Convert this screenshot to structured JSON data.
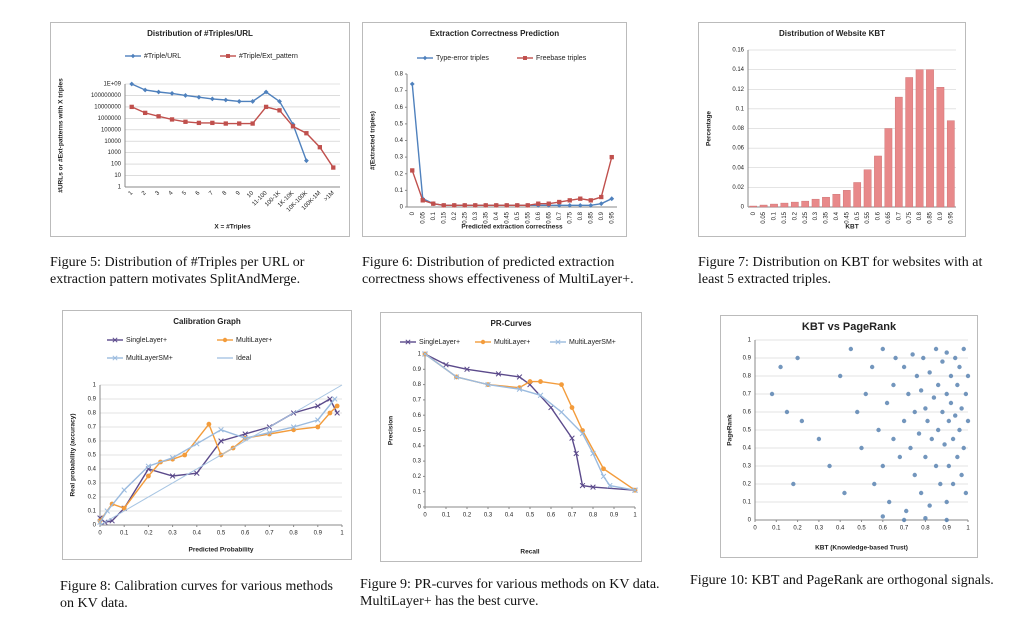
{
  "chart_data": [
    {
      "type": "line",
      "title": "Distribution of #Triples/URL",
      "x_label": "X = #Triples",
      "y_label": "#URLs or #Ext-patterns with X triples",
      "categories": [
        "1",
        "2",
        "3",
        "4",
        "5",
        "6",
        "7",
        "8",
        "9",
        "10",
        "11-100",
        "100-1K",
        "1K-10K",
        "10K-100K",
        "100K-1M",
        ">1M"
      ],
      "series": [
        {
          "name": "#Triple/URL",
          "color": "#4f81bd",
          "marker": "diamond",
          "values": [
            1000000000,
            300000000,
            200000000,
            150000000,
            100000000,
            70000000,
            50000000,
            40000000,
            30000000,
            30000000,
            200000000,
            30000000,
            300000,
            200,
            null,
            null
          ]
        },
        {
          "name": "#Triple/Ext_pattern",
          "color": "#c0504d",
          "marker": "square",
          "values": [
            10000000,
            3000000,
            1500000,
            800000,
            500000,
            400000,
            400000,
            350000,
            350000,
            350000,
            10000000,
            5000000,
            200000,
            50000,
            3000,
            50
          ]
        }
      ],
      "ylim": [
        1,
        1000000000
      ],
      "ylog": true,
      "yticks": [
        1,
        10,
        100,
        1000,
        10000,
        100000,
        1000000,
        10000000,
        100000000,
        {
          "value": 1000000000,
          "label": "1E+09"
        }
      ],
      "grid": true,
      "legend": "top"
    },
    {
      "type": "line",
      "title": "Extraction Correctness Prediction",
      "x_label": "Predicted extraction correctness",
      "y_label": "#(Extracted triples)",
      "categories": [
        "0",
        "0.05",
        "0.1",
        "0.15",
        "0.2",
        "0.25",
        "0.3",
        "0.35",
        "0.4",
        "0.45",
        "0.5",
        "0.55",
        "0.6",
        "0.65",
        "0.7",
        "0.75",
        "0.8",
        "0.85",
        "0.9",
        "0.95"
      ],
      "series": [
        {
          "name": "Type-error triples",
          "color": "#4f81bd",
          "marker": "diamond",
          "values": [
            0.74,
            0.05,
            0.02,
            0.01,
            0.01,
            0.01,
            0.01,
            0.01,
            0.01,
            0.01,
            0.01,
            0.01,
            0.01,
            0.01,
            0.01,
            0.01,
            0.01,
            0.01,
            0.02,
            0.05
          ]
        },
        {
          "name": "Freebase triples",
          "color": "#c0504d",
          "marker": "square",
          "values": [
            0.22,
            0.04,
            0.02,
            0.01,
            0.01,
            0.01,
            0.01,
            0.01,
            0.01,
            0.01,
            0.01,
            0.01,
            0.02,
            0.02,
            0.03,
            0.04,
            0.05,
            0.04,
            0.06,
            0.3
          ]
        }
      ],
      "ylim": [
        0,
        0.8
      ],
      "yticks": [
        0,
        0.1,
        0.2,
        0.3,
        0.4,
        0.5,
        0.6,
        0.7,
        0.8
      ],
      "grid": false,
      "legend": "top"
    },
    {
      "type": "bar",
      "title": "Distribution of Website KBT",
      "x_label": "KBT",
      "y_label": "Percentage",
      "categories": [
        "0",
        "0.05",
        "0.1",
        "0.15",
        "0.2",
        "0.25",
        "0.3",
        "0.35",
        "0.4",
        "0.45",
        "0.5",
        "0.55",
        "0.6",
        "0.65",
        "0.7",
        "0.75",
        "0.8",
        "0.85",
        "0.9",
        "0.95"
      ],
      "values": [
        0.001,
        0.002,
        0.003,
        0.004,
        0.005,
        0.006,
        0.008,
        0.01,
        0.013,
        0.017,
        0.025,
        0.038,
        0.052,
        0.08,
        0.112,
        0.132,
        0.14,
        0.14,
        0.122,
        0.088
      ],
      "color": "#e8898a",
      "ylim": [
        0,
        0.16
      ],
      "yticks": [
        0,
        0.02,
        0.04,
        0.06,
        0.08,
        0.1,
        0.12,
        0.14,
        0.16
      ],
      "grid": true
    },
    {
      "type": "line",
      "title": "Calibration Graph",
      "x_label": "Predicted Probability",
      "y_label": "Real probability (accuracy)",
      "series": [
        {
          "name": "SingleLayer+",
          "color": "#5b4a8b",
          "marker": "x",
          "x": [
            0,
            0.02,
            0.05,
            0.1,
            0.2,
            0.3,
            0.4,
            0.5,
            0.6,
            0.7,
            0.8,
            0.9,
            0.95,
            0.98
          ],
          "values": [
            0.05,
            0.02,
            0.03,
            0.12,
            0.4,
            0.35,
            0.37,
            0.6,
            0.65,
            0.7,
            0.8,
            0.85,
            0.9,
            0.8
          ]
        },
        {
          "name": "MultiLayer+",
          "color": "#f39c3c",
          "marker": "circle",
          "x": [
            0,
            0.05,
            0.1,
            0.2,
            0.25,
            0.3,
            0.35,
            0.45,
            0.5,
            0.55,
            0.6,
            0.7,
            0.8,
            0.9,
            0.95,
            0.98
          ],
          "values": [
            0.03,
            0.15,
            0.12,
            0.35,
            0.45,
            0.47,
            0.5,
            0.72,
            0.5,
            0.55,
            0.62,
            0.65,
            0.68,
            0.7,
            0.8,
            0.85
          ]
        },
        {
          "name": "MultiLayerSM+",
          "color": "#9bbbdf",
          "marker": "x",
          "x": [
            0,
            0.03,
            0.1,
            0.2,
            0.3,
            0.4,
            0.5,
            0.6,
            0.7,
            0.8,
            0.9,
            0.97
          ],
          "values": [
            0.02,
            0.1,
            0.25,
            0.42,
            0.48,
            0.58,
            0.68,
            0.62,
            0.66,
            0.7,
            0.75,
            0.9
          ]
        },
        {
          "name": "Ideal",
          "color": "#a7c5e3",
          "marker": "none",
          "x": [
            0,
            1
          ],
          "values": [
            0,
            1
          ]
        }
      ],
      "xlim": [
        0,
        1
      ],
      "xticks": [
        0,
        0.1,
        0.2,
        0.3,
        0.4,
        0.5,
        0.6,
        0.7,
        0.8,
        0.9,
        1
      ],
      "ylim": [
        0,
        1
      ],
      "yticks": [
        0,
        0.1,
        0.2,
        0.3,
        0.4,
        0.5,
        0.6,
        0.7,
        0.8,
        0.9,
        1
      ],
      "grid": true,
      "legend": "top"
    },
    {
      "type": "line",
      "title": "PR-Curves",
      "x_label": "Recall",
      "y_label": "Precision",
      "series": [
        {
          "name": "SingleLayer+",
          "color": "#5b4a8b",
          "marker": "x",
          "x": [
            0,
            0.1,
            0.2,
            0.35,
            0.45,
            0.5,
            0.6,
            0.7,
            0.72,
            0.75,
            0.8,
            1
          ],
          "values": [
            1,
            0.93,
            0.9,
            0.87,
            0.85,
            0.8,
            0.65,
            0.45,
            0.35,
            0.14,
            0.13,
            0.11
          ]
        },
        {
          "name": "MultiLayer+",
          "color": "#f39c3c",
          "marker": "circle",
          "x": [
            0,
            0.15,
            0.3,
            0.45,
            0.5,
            0.55,
            0.65,
            0.7,
            0.75,
            0.85,
            1
          ],
          "values": [
            1,
            0.85,
            0.8,
            0.78,
            0.82,
            0.82,
            0.8,
            0.65,
            0.5,
            0.25,
            0.11
          ]
        },
        {
          "name": "MultiLayerSM+",
          "color": "#9bbbdf",
          "marker": "x",
          "x": [
            0,
            0.15,
            0.3,
            0.45,
            0.55,
            0.65,
            0.75,
            0.8,
            0.85,
            0.88,
            1
          ],
          "values": [
            1,
            0.85,
            0.8,
            0.77,
            0.73,
            0.62,
            0.48,
            0.35,
            0.2,
            0.14,
            0.11
          ]
        }
      ],
      "xlim": [
        0,
        1
      ],
      "xticks": [
        0,
        0.1,
        0.2,
        0.3,
        0.4,
        0.5,
        0.6,
        0.7,
        0.8,
        0.9,
        1
      ],
      "ylim": [
        0,
        1
      ],
      "yticks": [
        0,
        0.1,
        0.2,
        0.3,
        0.4,
        0.5,
        0.6,
        0.7,
        0.8,
        0.9,
        1
      ],
      "grid": false,
      "legend": "top"
    },
    {
      "type": "scatter",
      "title": "KBT vs PageRank",
      "x_label": "KBT (Knowledge-based Trust)",
      "y_label": "PageRank",
      "color": "#5b84b1",
      "x": [
        0.08,
        0.12,
        0.15,
        0.18,
        0.2,
        0.22,
        0.3,
        0.35,
        0.4,
        0.42,
        0.45,
        0.48,
        0.5,
        0.52,
        0.55,
        0.56,
        0.58,
        0.6,
        0.6,
        0.62,
        0.63,
        0.65,
        0.65,
        0.66,
        0.68,
        0.7,
        0.7,
        0.71,
        0.72,
        0.73,
        0.74,
        0.75,
        0.75,
        0.76,
        0.77,
        0.78,
        0.78,
        0.79,
        0.8,
        0.8,
        0.81,
        0.82,
        0.82,
        0.83,
        0.84,
        0.85,
        0.85,
        0.86,
        0.86,
        0.87,
        0.88,
        0.88,
        0.89,
        0.9,
        0.9,
        0.9,
        0.91,
        0.91,
        0.92,
        0.92,
        0.93,
        0.93,
        0.94,
        0.94,
        0.95,
        0.95,
        0.96,
        0.96,
        0.97,
        0.97,
        0.98,
        0.98,
        0.99,
        0.99,
        1,
        1,
        0.6,
        0.7,
        0.8,
        0.9
      ],
      "values": [
        0.7,
        0.85,
        0.6,
        0.2,
        0.9,
        0.55,
        0.45,
        0.3,
        0.8,
        0.15,
        0.95,
        0.6,
        0.4,
        0.7,
        0.85,
        0.2,
        0.5,
        0.95,
        0.3,
        0.65,
        0.1,
        0.75,
        0.45,
        0.9,
        0.35,
        0.55,
        0.85,
        0.05,
        0.7,
        0.4,
        0.92,
        0.25,
        0.6,
        0.8,
        0.48,
        0.15,
        0.72,
        0.9,
        0.35,
        0.62,
        0.55,
        0.08,
        0.82,
        0.45,
        0.68,
        0.3,
        0.95,
        0.5,
        0.75,
        0.2,
        0.6,
        0.88,
        0.42,
        0.1,
        0.7,
        0.93,
        0.55,
        0.3,
        0.8,
        0.65,
        0.45,
        0.2,
        0.9,
        0.58,
        0.35,
        0.75,
        0.5,
        0.85,
        0.25,
        0.62,
        0.95,
        0.4,
        0.7,
        0.15,
        0.55,
        0.8,
        0.02,
        0,
        0.01,
        0
      ],
      "xlim": [
        0,
        1
      ],
      "xticks": [
        0,
        0.1,
        0.2,
        0.3,
        0.4,
        0.5,
        0.6,
        0.7,
        0.8,
        0.9,
        1
      ],
      "ylim": [
        0,
        1
      ],
      "yticks": [
        0,
        0.1,
        0.2,
        0.3,
        0.4,
        0.5,
        0.6,
        0.7,
        0.8,
        0.9,
        1
      ],
      "grid": true
    }
  ],
  "captions": [
    "Figure 5: Distribution of #Triples per URL or extraction pattern motivates SplitAndMerge.",
    "Figure 6: Distribution of predicted extraction correctness shows effectiveness of MultiLayer+.",
    "Figure 7: Distribution on KBT for websites with at least 5 extracted triples.",
    "Figure 8: Calibration curves for various methods on KV data.",
    "Figure 9: PR-curves for various methods on KV data. MultiLayer+ has the best curve.",
    "Figure 10: KBT and PageRank are orthogonal signals."
  ]
}
